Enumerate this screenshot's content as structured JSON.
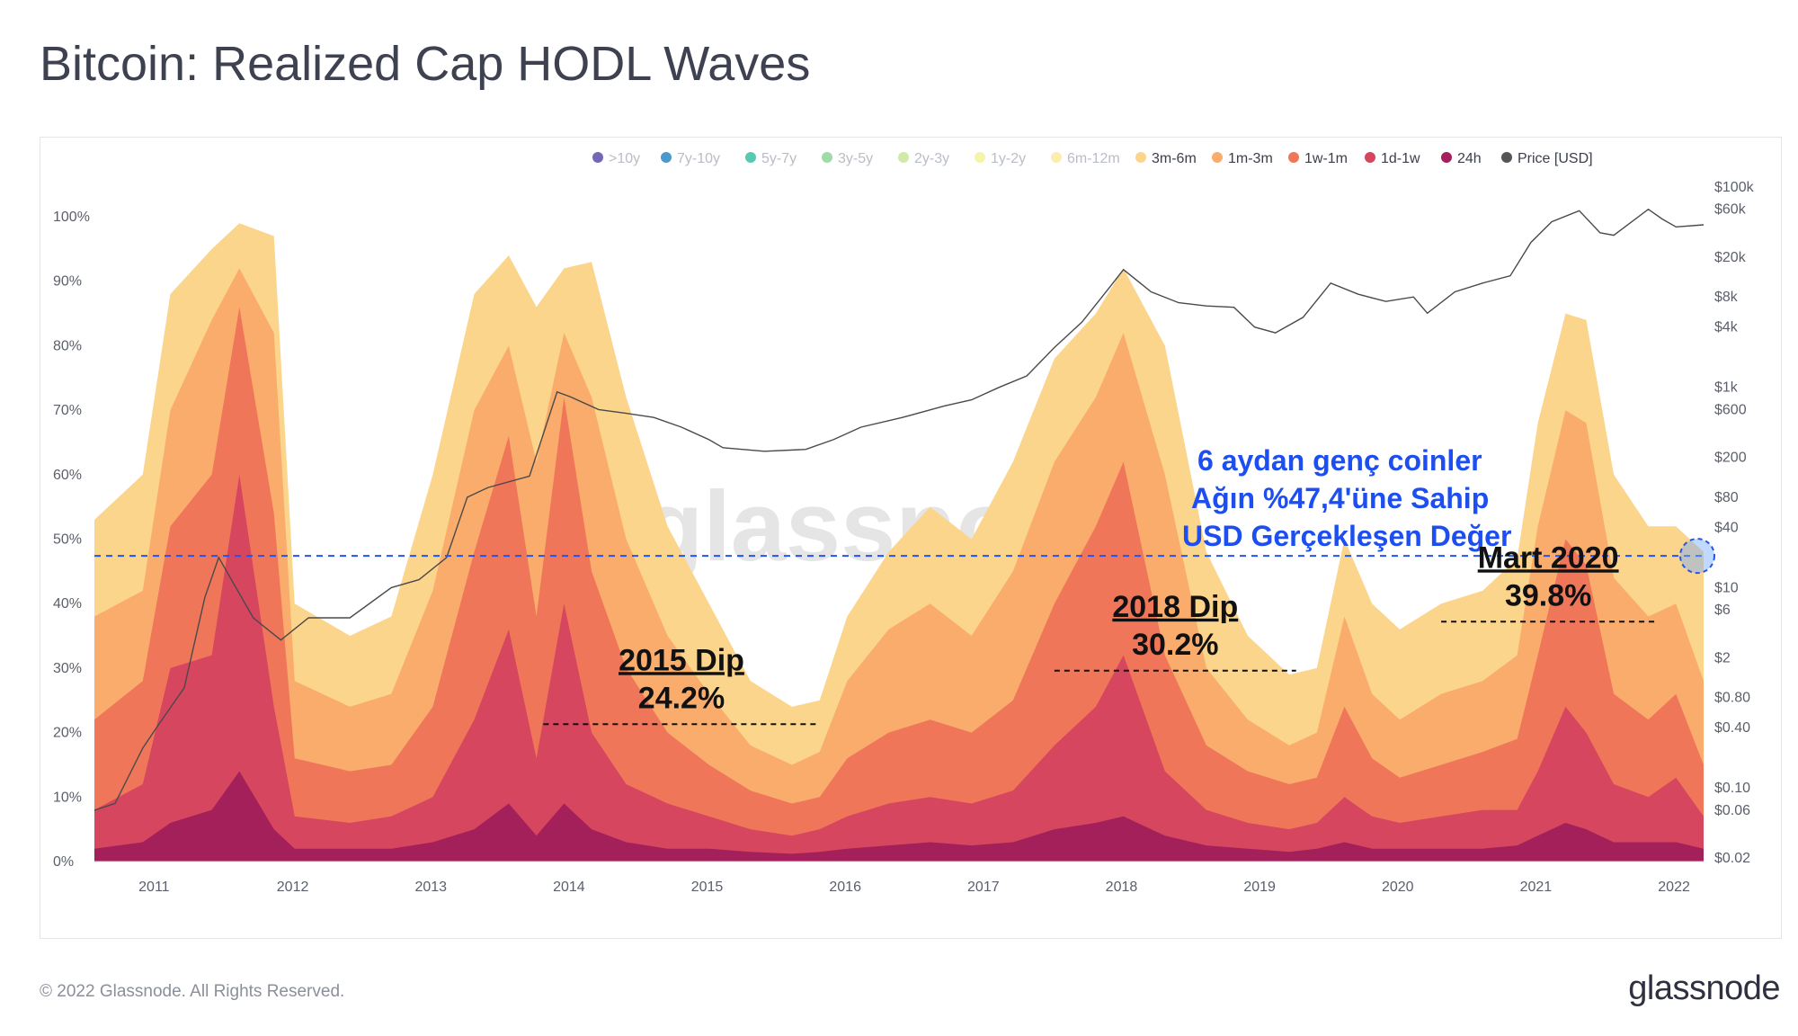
{
  "title": "Bitcoin: Realized Cap HODL Waves",
  "footer": "© 2022 Glassnode. All Rights Reserved.",
  "brand": "glassnode",
  "watermark": "glassnode",
  "chart_data": {
    "type": "area",
    "title": "Bitcoin: Realized Cap HODL Waves",
    "x_range": [
      2010.55,
      2022.2
    ],
    "x_ticks": [
      "2011",
      "2012",
      "2013",
      "2014",
      "2015",
      "2016",
      "2017",
      "2018",
      "2019",
      "2020",
      "2021",
      "2022"
    ],
    "y_left_range": [
      0,
      100
    ],
    "y_left_ticks": [
      "0%",
      "10%",
      "20%",
      "30%",
      "40%",
      "50%",
      "60%",
      "70%",
      "80%",
      "90%",
      "100%"
    ],
    "y_right_ticks": [
      {
        "label": "$0.02",
        "value": 0.02
      },
      {
        "label": "$0.06",
        "value": 0.06
      },
      {
        "label": "$0.10",
        "value": 0.1
      },
      {
        "label": "$0.40",
        "value": 0.4
      },
      {
        "label": "$0.80",
        "value": 0.8
      },
      {
        "label": "$2",
        "value": 2
      },
      {
        "label": "$6",
        "value": 6
      },
      {
        "label": "$10",
        "value": 10
      },
      {
        "label": "$40",
        "value": 40
      },
      {
        "label": "$80",
        "value": 80
      },
      {
        "label": "$200",
        "value": 200
      },
      {
        "label": "$600",
        "value": 600
      },
      {
        "label": "$1k",
        "value": 1000
      },
      {
        "label": "$4k",
        "value": 4000
      },
      {
        "label": "$8k",
        "value": 8000
      },
      {
        "label": "$20k",
        "value": 20000
      },
      {
        "label": "$60k",
        "value": 60000
      },
      {
        "label": "$100k",
        "value": 100000
      }
    ],
    "legend": [
      {
        "name": ">10y",
        "color": "#5b4ea8",
        "active": false
      },
      {
        "name": "7y-10y",
        "color": "#2e86c1",
        "active": false
      },
      {
        "name": "5y-7y",
        "color": "#3dbfa7",
        "active": false
      },
      {
        "name": "3y-5y",
        "color": "#8fd49a",
        "active": false
      },
      {
        "name": "2y-3y",
        "color": "#c8e89a",
        "active": false
      },
      {
        "name": "1y-2y",
        "color": "#f3f29b",
        "active": false
      },
      {
        "name": "6m-12m",
        "color": "#fde9a1",
        "active": false
      },
      {
        "name": "3m-6m",
        "color": "#fcd58c",
        "active": true
      },
      {
        "name": "1m-3m",
        "color": "#f9ac6c",
        "active": true
      },
      {
        "name": "1w-1m",
        "color": "#f0765a",
        "active": true
      },
      {
        "name": "1d-1w",
        "color": "#d6465f",
        "active": true
      },
      {
        "name": "24h",
        "color": "#a3205a",
        "active": true
      },
      {
        "name": "Price [USD]",
        "color": "#555555",
        "active": true
      }
    ],
    "series": [
      {
        "name": "3m-6m",
        "color": "#fcd58c",
        "x": [
          2010.55,
          2010.9,
          2011.1,
          2011.4,
          2011.6,
          2011.85,
          2012.0,
          2012.4,
          2012.7,
          2013.0,
          2013.3,
          2013.55,
          2013.75,
          2013.95,
          2014.15,
          2014.4,
          2014.7,
          2015.0,
          2015.3,
          2015.6,
          2015.8,
          2016.0,
          2016.3,
          2016.6,
          2016.9,
          2017.2,
          2017.5,
          2017.8,
          2018.0,
          2018.3,
          2018.6,
          2018.9,
          2019.2,
          2019.4,
          2019.6,
          2019.8,
          2020.0,
          2020.3,
          2020.6,
          2020.85,
          2021.0,
          2021.2,
          2021.35,
          2021.55,
          2021.8,
          2022.0,
          2022.2
        ],
        "values": [
          53,
          60,
          88,
          95,
          99,
          97,
          40,
          35,
          38,
          60,
          88,
          94,
          86,
          92,
          93,
          72,
          52,
          40,
          28,
          24,
          25,
          38,
          48,
          55,
          50,
          62,
          78,
          85,
          92,
          80,
          48,
          35,
          29,
          30,
          50,
          40,
          36,
          40,
          42,
          47,
          68,
          85,
          84,
          60,
          52,
          52,
          48
        ]
      },
      {
        "name": "1m-3m",
        "color": "#f9ac6c",
        "x": [
          2010.55,
          2010.9,
          2011.1,
          2011.4,
          2011.6,
          2011.85,
          2012.0,
          2012.4,
          2012.7,
          2013.0,
          2013.3,
          2013.55,
          2013.75,
          2013.95,
          2014.15,
          2014.4,
          2014.7,
          2015.0,
          2015.3,
          2015.6,
          2015.8,
          2016.0,
          2016.3,
          2016.6,
          2016.9,
          2017.2,
          2017.5,
          2017.8,
          2018.0,
          2018.3,
          2018.6,
          2018.9,
          2019.2,
          2019.4,
          2019.6,
          2019.8,
          2020.0,
          2020.3,
          2020.6,
          2020.85,
          2021.0,
          2021.2,
          2021.35,
          2021.55,
          2021.8,
          2022.0,
          2022.2
        ],
        "values": [
          38,
          42,
          70,
          84,
          92,
          82,
          28,
          24,
          26,
          42,
          70,
          80,
          62,
          82,
          72,
          50,
          35,
          26,
          18,
          15,
          17,
          28,
          36,
          40,
          35,
          45,
          62,
          72,
          82,
          60,
          30,
          22,
          18,
          20,
          38,
          26,
          22,
          26,
          28,
          32,
          52,
          70,
          68,
          44,
          38,
          40,
          28
        ]
      },
      {
        "name": "1w-1m",
        "color": "#f0765a",
        "x": [
          2010.55,
          2010.9,
          2011.1,
          2011.4,
          2011.6,
          2011.85,
          2012.0,
          2012.4,
          2012.7,
          2013.0,
          2013.3,
          2013.55,
          2013.75,
          2013.95,
          2014.15,
          2014.4,
          2014.7,
          2015.0,
          2015.3,
          2015.6,
          2015.8,
          2016.0,
          2016.3,
          2016.6,
          2016.9,
          2017.2,
          2017.5,
          2017.8,
          2018.0,
          2018.3,
          2018.6,
          2018.9,
          2019.2,
          2019.4,
          2019.6,
          2019.8,
          2020.0,
          2020.3,
          2020.6,
          2020.85,
          2021.0,
          2021.2,
          2021.35,
          2021.55,
          2021.8,
          2022.0,
          2022.2
        ],
        "values": [
          22,
          28,
          52,
          60,
          86,
          54,
          16,
          14,
          15,
          24,
          48,
          66,
          38,
          72,
          45,
          30,
          20,
          15,
          11,
          9,
          10,
          16,
          20,
          22,
          20,
          25,
          40,
          52,
          62,
          32,
          18,
          14,
          12,
          13,
          24,
          16,
          13,
          15,
          17,
          19,
          32,
          50,
          46,
          26,
          22,
          26,
          15
        ]
      },
      {
        "name": "1d-1w",
        "color": "#d6465f",
        "x": [
          2010.55,
          2010.9,
          2011.1,
          2011.4,
          2011.6,
          2011.85,
          2012.0,
          2012.4,
          2012.7,
          2013.0,
          2013.3,
          2013.55,
          2013.75,
          2013.95,
          2014.15,
          2014.4,
          2014.7,
          2015.0,
          2015.3,
          2015.6,
          2015.8,
          2016.0,
          2016.3,
          2016.6,
          2016.9,
          2017.2,
          2017.5,
          2017.8,
          2018.0,
          2018.3,
          2018.6,
          2018.9,
          2019.2,
          2019.4,
          2019.6,
          2019.8,
          2020.0,
          2020.3,
          2020.6,
          2020.85,
          2021.0,
          2021.2,
          2021.35,
          2021.55,
          2021.8,
          2022.0,
          2022.2
        ],
        "values": [
          8,
          12,
          30,
          32,
          60,
          24,
          7,
          6,
          7,
          10,
          22,
          36,
          16,
          40,
          20,
          12,
          9,
          7,
          5,
          4,
          5,
          7,
          9,
          10,
          9,
          11,
          18,
          24,
          32,
          14,
          8,
          6,
          5,
          6,
          10,
          7,
          6,
          7,
          8,
          8,
          14,
          24,
          20,
          12,
          10,
          13,
          7
        ]
      },
      {
        "name": "24h",
        "color": "#a3205a",
        "x": [
          2010.55,
          2010.9,
          2011.1,
          2011.4,
          2011.6,
          2011.85,
          2012.0,
          2012.4,
          2012.7,
          2013.0,
          2013.3,
          2013.55,
          2013.75,
          2013.95,
          2014.15,
          2014.4,
          2014.7,
          2015.0,
          2015.3,
          2015.6,
          2015.8,
          2016.0,
          2016.3,
          2016.6,
          2016.9,
          2017.2,
          2017.5,
          2017.8,
          2018.0,
          2018.3,
          2018.6,
          2018.9,
          2019.2,
          2019.4,
          2019.6,
          2019.8,
          2020.0,
          2020.3,
          2020.6,
          2020.85,
          2021.0,
          2021.2,
          2021.35,
          2021.55,
          2021.8,
          2022.0,
          2022.2
        ],
        "values": [
          2,
          3,
          6,
          8,
          14,
          5,
          2,
          2,
          2,
          3,
          5,
          9,
          4,
          9,
          5,
          3,
          2,
          2,
          1.5,
          1.2,
          1.5,
          2,
          2.5,
          3,
          2.5,
          3,
          5,
          6,
          7,
          4,
          2.5,
          2,
          1.5,
          2,
          3,
          2,
          2,
          2,
          2,
          2.5,
          4,
          6,
          5,
          3,
          3,
          3,
          2
        ]
      }
    ],
    "price_series": {
      "name": "Price [USD]",
      "x": [
        2010.55,
        2010.7,
        2010.9,
        2011.0,
        2011.2,
        2011.35,
        2011.45,
        2011.7,
        2011.9,
        2012.1,
        2012.4,
        2012.7,
        2012.9,
        2013.1,
        2013.25,
        2013.4,
        2013.7,
        2013.9,
        2014.0,
        2014.2,
        2014.4,
        2014.6,
        2014.8,
        2015.0,
        2015.1,
        2015.4,
        2015.7,
        2015.9,
        2016.1,
        2016.4,
        2016.7,
        2016.9,
        2017.1,
        2017.3,
        2017.5,
        2017.7,
        2017.9,
        2018.0,
        2018.2,
        2018.4,
        2018.6,
        2018.8,
        2018.95,
        2019.1,
        2019.3,
        2019.5,
        2019.7,
        2019.9,
        2020.1,
        2020.2,
        2020.4,
        2020.6,
        2020.8,
        2020.95,
        2021.1,
        2021.3,
        2021.45,
        2021.55,
        2021.8,
        2021.9,
        2022.0,
        2022.2
      ],
      "values": [
        0.06,
        0.07,
        0.25,
        0.4,
        1.0,
        8,
        20,
        5,
        3,
        5,
        5,
        10,
        12,
        20,
        80,
        100,
        130,
        900,
        800,
        600,
        550,
        500,
        400,
        300,
        250,
        230,
        240,
        300,
        400,
        500,
        650,
        750,
        1000,
        1300,
        2500,
        4500,
        10000,
        15000,
        9000,
        7000,
        6500,
        6300,
        4000,
        3500,
        5000,
        11000,
        8500,
        7200,
        8000,
        5500,
        9000,
        11000,
        13000,
        28000,
        45000,
        58000,
        35000,
        33000,
        60000,
        48000,
        40000,
        42000
      ]
    },
    "threshold": {
      "value": 47.4,
      "color": "#2255ee"
    },
    "annotations": [
      {
        "title": "2015 Dip",
        "value": "24.2%",
        "x_start": 2013.8,
        "x_end": 2015.8,
        "y": 21.3
      },
      {
        "title": "2018 Dip",
        "value": "30.2%",
        "x_start": 2017.5,
        "x_end": 2019.25,
        "y": 29.6
      },
      {
        "title": "Mart 2020",
        "value": "39.8%",
        "x_start": 2020.3,
        "x_end": 2021.85,
        "y": 37.2
      }
    ],
    "callout": [
      "6 aydan genç coinler",
      "Ağın %47,4'üne Sahip",
      "USD Gerçekleşen Değer"
    ]
  }
}
